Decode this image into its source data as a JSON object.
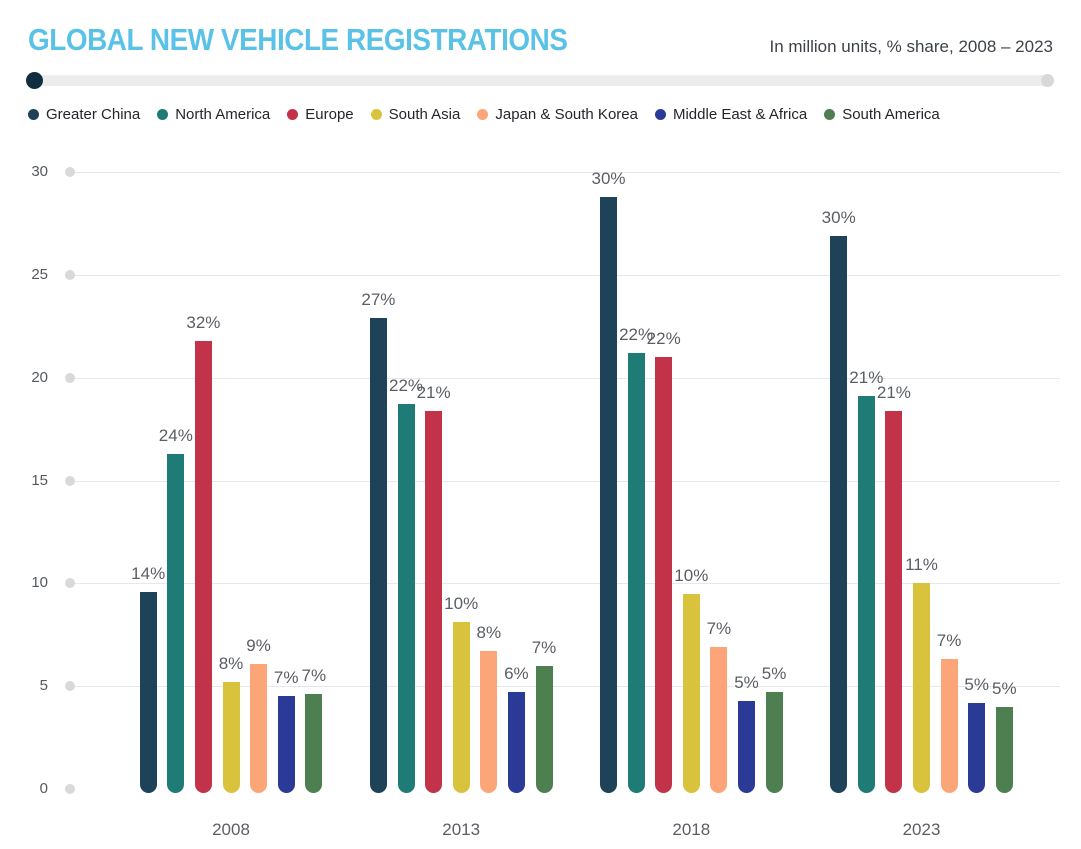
{
  "header": {
    "title": "GLOBAL NEW VEHICLE REGISTRATIONS",
    "subtitle": "In million units, % share, 2008 – 2023"
  },
  "colors": {
    "title_accent": "#5bc2e7",
    "slider_track": "#ececec",
    "slider_handle": "#102e3e",
    "gridline": "#e8e8ec",
    "axis_dot": "#d9d9da",
    "label_gray": "#5a5e64"
  },
  "chart_data": {
    "type": "bar",
    "title": "GLOBAL NEW VEHICLE REGISTRATIONS",
    "subtitle": "In million units, % share, 2008 – 2023",
    "xlabel": "",
    "ylabel": "",
    "ylim": [
      0,
      30
    ],
    "yticks": [
      0,
      5,
      10,
      15,
      20,
      25,
      30
    ],
    "grid": true,
    "legend_position": "top",
    "units": "million units",
    "categories": [
      "2008",
      "2013",
      "2018",
      "2023"
    ],
    "series": [
      {
        "name": "Greater China",
        "color": "#1e4258",
        "values": [
          9.6,
          22.9,
          28.8,
          26.9
        ],
        "share_labels": [
          "14%",
          "27%",
          "30%",
          "30%"
        ]
      },
      {
        "name": "North America",
        "color": "#1f7b76",
        "values": [
          16.3,
          18.7,
          21.2,
          19.1
        ],
        "share_labels": [
          "24%",
          "22%",
          "22%",
          "21%"
        ]
      },
      {
        "name": "Europe",
        "color": "#c23349",
        "values": [
          21.8,
          18.4,
          21.0,
          18.4
        ],
        "share_labels": [
          "32%",
          "21%",
          "22%",
          "21%"
        ]
      },
      {
        "name": "South Asia",
        "color": "#d9c33c",
        "values": [
          5.2,
          8.1,
          9.5,
          10.0
        ],
        "share_labels": [
          "8%",
          "10%",
          "10%",
          "11%"
        ]
      },
      {
        "name": "Japan & South Korea",
        "color": "#fca578",
        "values": [
          6.1,
          6.7,
          6.9,
          6.3
        ],
        "share_labels": [
          "9%",
          "8%",
          "7%",
          "7%"
        ]
      },
      {
        "name": "Middle East & Africa",
        "color": "#2c3a97",
        "values": [
          4.5,
          4.7,
          4.3,
          4.2
        ],
        "share_labels": [
          "7%",
          "6%",
          "5%",
          "5%"
        ]
      },
      {
        "name": "South America",
        "color": "#4e7f50",
        "values": [
          4.6,
          6.0,
          4.7,
          4.0
        ],
        "share_labels": [
          "7%",
          "7%",
          "5%",
          "5%"
        ]
      }
    ]
  }
}
